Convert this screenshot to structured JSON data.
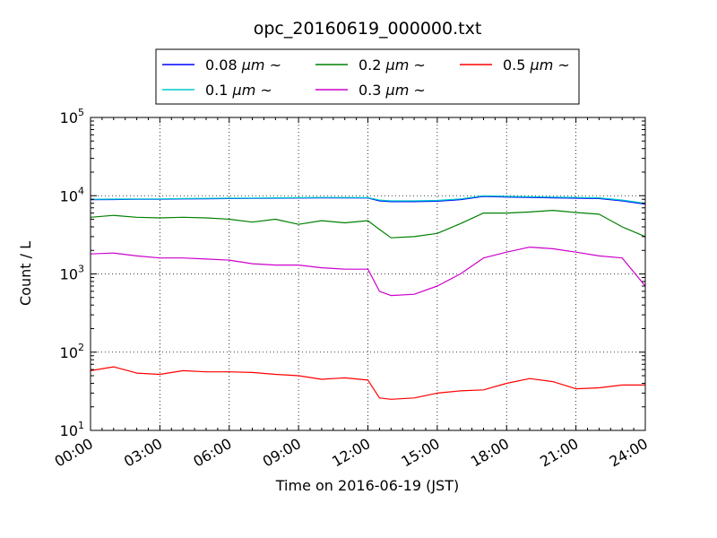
{
  "chart_data": {
    "type": "line",
    "title": "opc_20160619_000000.txt",
    "xlabel": "Time on 2016-06-19 (JST)",
    "ylabel": "Count / L",
    "yscale": "log",
    "ylim": [
      10,
      100000
    ],
    "xlim": [
      "00:00",
      "24:00"
    ],
    "x_ticks": [
      "00:00",
      "03:00",
      "06:00",
      "09:00",
      "12:00",
      "15:00",
      "18:00",
      "21:00",
      "24:00"
    ],
    "y_ticks": [
      {
        "base": "10",
        "exp": "1"
      },
      {
        "base": "10",
        "exp": "2"
      },
      {
        "base": "10",
        "exp": "3"
      },
      {
        "base": "10",
        "exp": "4"
      },
      {
        "base": "10",
        "exp": "5"
      }
    ],
    "grid": true,
    "legend_position": "top-center",
    "x": [
      "00:00",
      "01:00",
      "02:00",
      "03:00",
      "04:00",
      "05:00",
      "06:00",
      "07:00",
      "08:00",
      "09:00",
      "10:00",
      "11:00",
      "12:00",
      "12:30",
      "13:00",
      "14:00",
      "15:00",
      "16:00",
      "17:00",
      "18:00",
      "19:00",
      "20:00",
      "21:00",
      "22:00",
      "23:00",
      "24:00"
    ],
    "series": [
      {
        "name": "0.08 μm ~",
        "label_main": "0.08 ",
        "label_unit": "μm",
        "label_tail": " ~",
        "color": "#0000ff",
        "values": [
          8900,
          8950,
          9000,
          9000,
          9100,
          9150,
          9200,
          9250,
          9300,
          9350,
          9400,
          9400,
          9350,
          8600,
          8400,
          8400,
          8500,
          8900,
          9800,
          9600,
          9500,
          9400,
          9300,
          9200,
          8600,
          7800
        ]
      },
      {
        "name": "0.1 μm ~",
        "label_main": "0.1 ",
        "label_unit": "μm",
        "label_tail": " ~",
        "color": "#00cccc",
        "values": [
          9000,
          9050,
          9100,
          9100,
          9200,
          9250,
          9300,
          9350,
          9400,
          9450,
          9500,
          9500,
          9450,
          8800,
          8600,
          8600,
          8700,
          9100,
          10000,
          9800,
          9700,
          9600,
          9500,
          9400,
          8800,
          8000
        ]
      },
      {
        "name": "0.2 μm ~",
        "label_main": "0.2 ",
        "label_unit": "μm",
        "label_tail": " ~",
        "color": "#008000",
        "values": [
          5300,
          5600,
          5300,
          5200,
          5300,
          5200,
          5000,
          4600,
          5000,
          4300,
          4800,
          4500,
          4800,
          3700,
          2900,
          3000,
          3300,
          4400,
          6000,
          6000,
          6200,
          6500,
          6100,
          5800,
          4000,
          3000
        ]
      },
      {
        "name": "0.3 μm ~",
        "label_main": "0.3 ",
        "label_unit": "μm",
        "label_tail": " ~",
        "color": "#cc00cc",
        "values": [
          1800,
          1850,
          1700,
          1600,
          1600,
          1550,
          1500,
          1350,
          1300,
          1300,
          1200,
          1150,
          1150,
          600,
          530,
          550,
          700,
          1000,
          1600,
          1900,
          2200,
          2100,
          1900,
          1700,
          1600,
          700
        ]
      },
      {
        "name": "0.5 μm ~",
        "label_main": "0.5 ",
        "label_unit": "μm",
        "label_tail": " ~",
        "color": "#ff0000",
        "values": [
          58,
          65,
          54,
          52,
          58,
          56,
          56,
          55,
          52,
          50,
          45,
          47,
          44,
          26,
          25,
          26,
          30,
          32,
          33,
          40,
          46,
          42,
          34,
          35,
          38,
          38
        ]
      }
    ]
  }
}
